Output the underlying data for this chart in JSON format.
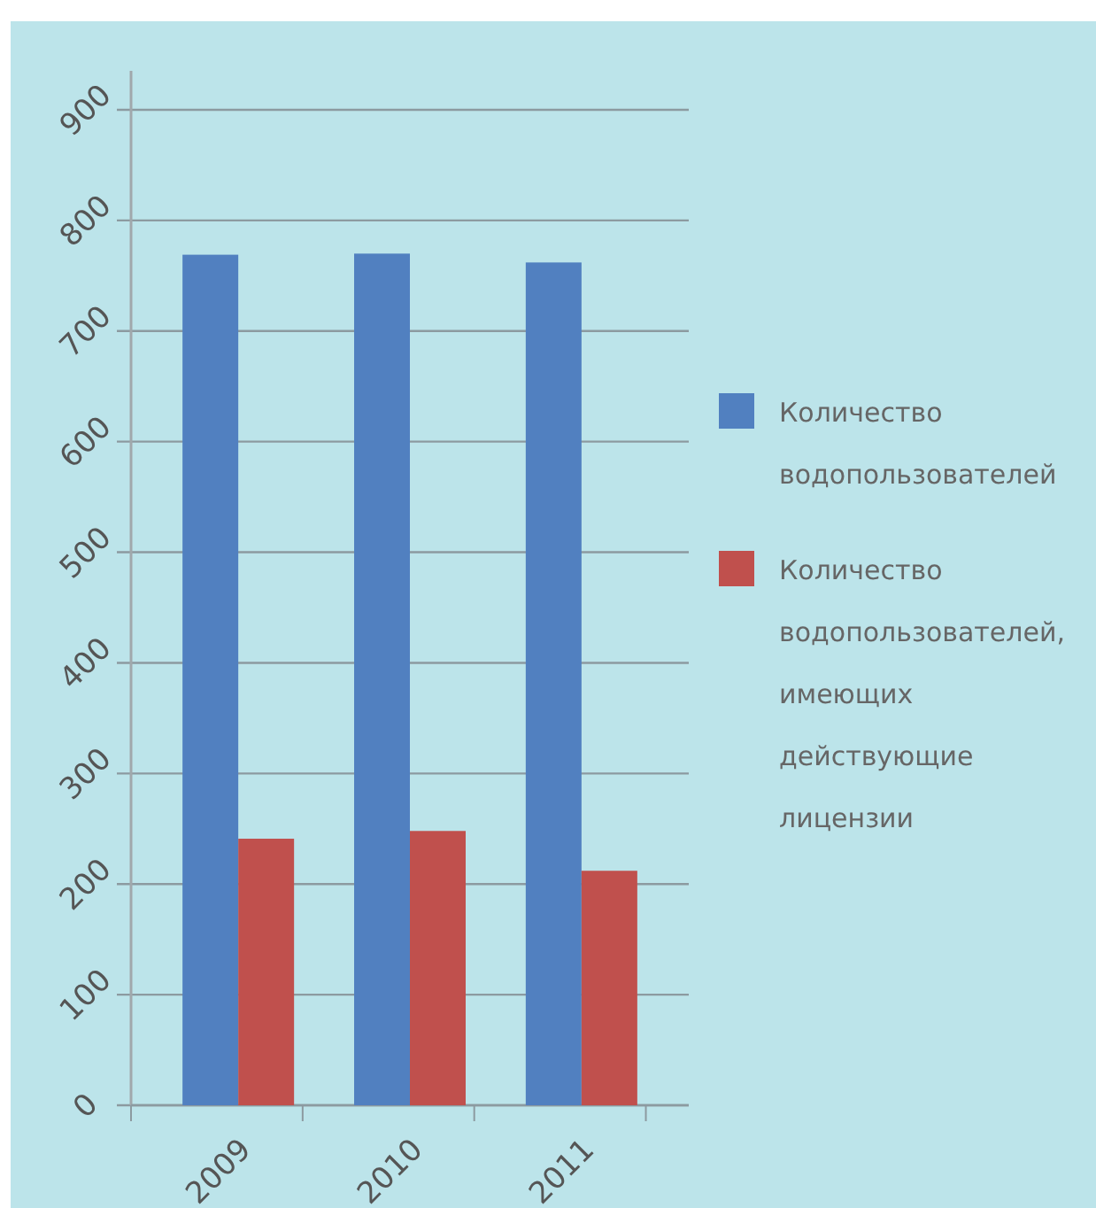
{
  "chart_data": {
    "type": "bar",
    "categories": [
      "2009",
      "2010",
      "2011"
    ],
    "series": [
      {
        "name": "Количество водопользователей",
        "color": "#5180c0",
        "values": [
          769,
          770,
          762
        ]
      },
      {
        "name": "Количество водопользователей, имеющих действующие лицензии",
        "color": "#c0504d",
        "values": [
          241,
          248,
          212
        ]
      }
    ],
    "ylim": [
      0,
      900
    ],
    "yticks": [
      0,
      100,
      200,
      300,
      400,
      500,
      600,
      700,
      800,
      900
    ],
    "grid": "y",
    "legend": "right"
  }
}
